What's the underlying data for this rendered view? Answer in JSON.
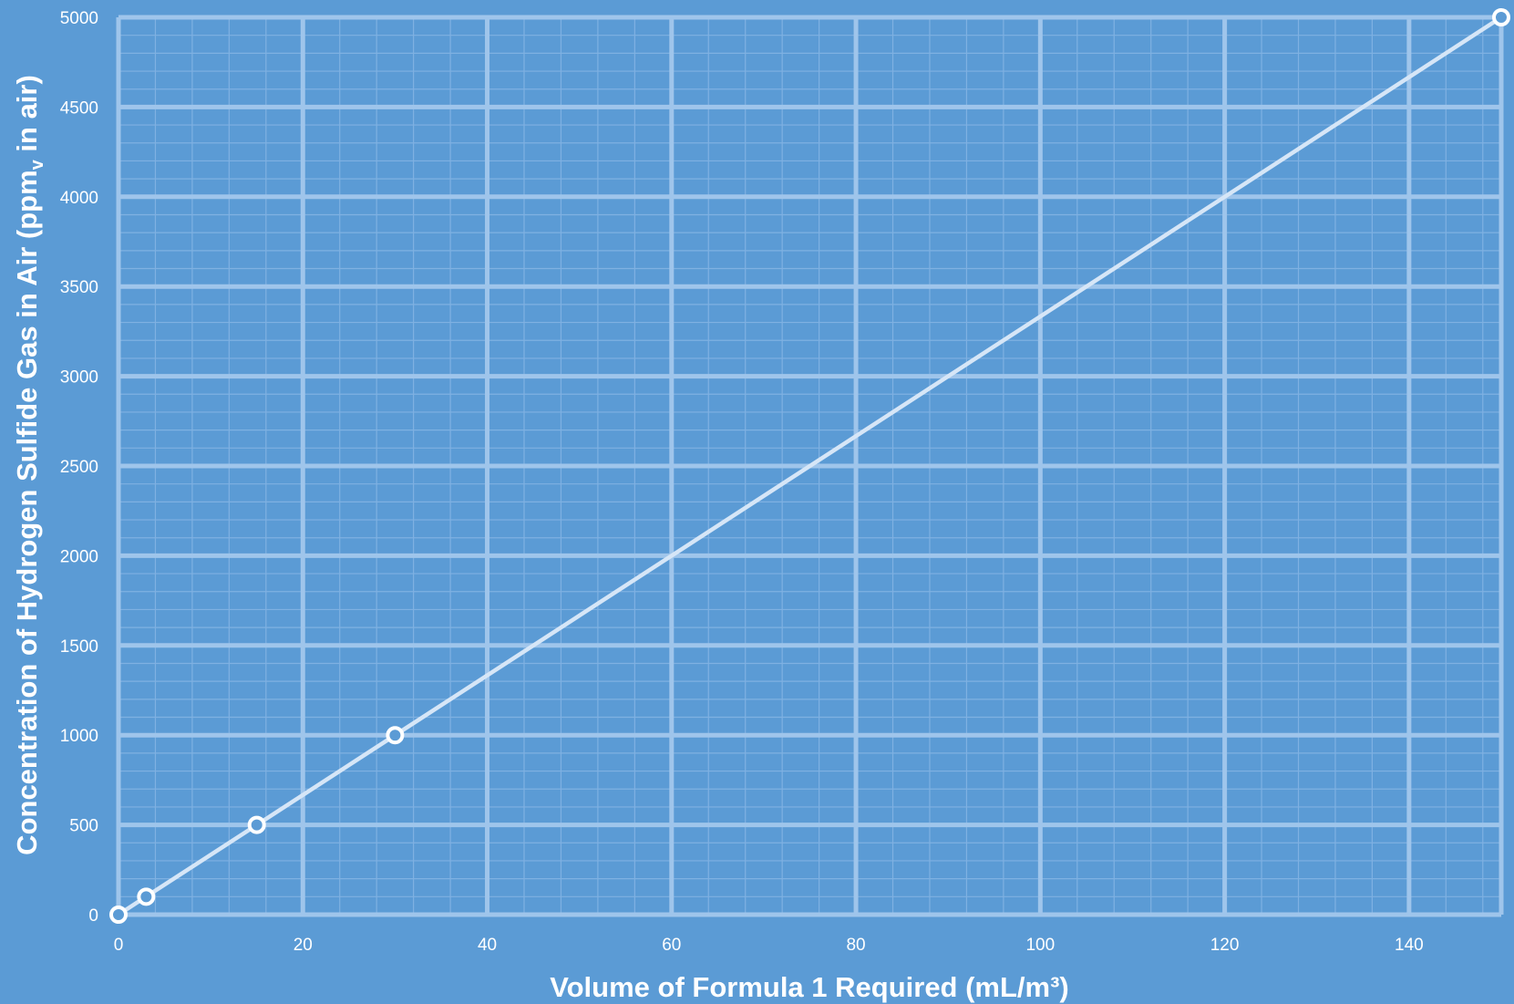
{
  "chart_data": {
    "type": "line",
    "title": "",
    "xlabel": "Volume of Formula 1 Required (mL/m³)",
    "ylabel_parts": [
      "Concentration of Hydrogen Sulfide Gas in Air (ppm",
      "v",
      " in air)"
    ],
    "xlim": [
      0,
      150
    ],
    "ylim": [
      0,
      5000
    ],
    "x_ticks": [
      0,
      20,
      40,
      60,
      80,
      100,
      120,
      140
    ],
    "y_ticks": [
      0,
      500,
      1000,
      1500,
      2000,
      2500,
      3000,
      3500,
      4000,
      4500,
      5000
    ],
    "grid": true,
    "legend": "none",
    "series": [
      {
        "points": [
          {
            "x": 0,
            "y": 0
          },
          {
            "x": 3,
            "y": 100
          },
          {
            "x": 15,
            "y": 500
          },
          {
            "x": 30,
            "y": 1000
          },
          {
            "x": 150,
            "y": 5000
          }
        ]
      }
    ],
    "colors": {
      "background": "#5b9bd5",
      "grid_major": "#9fc5eb",
      "grid_minor": "#7fb1e2",
      "line": "#d6e6f7",
      "marker_fill": "#5b9bd5",
      "marker_stroke": "#ffffff",
      "text": "#ffffff"
    }
  }
}
